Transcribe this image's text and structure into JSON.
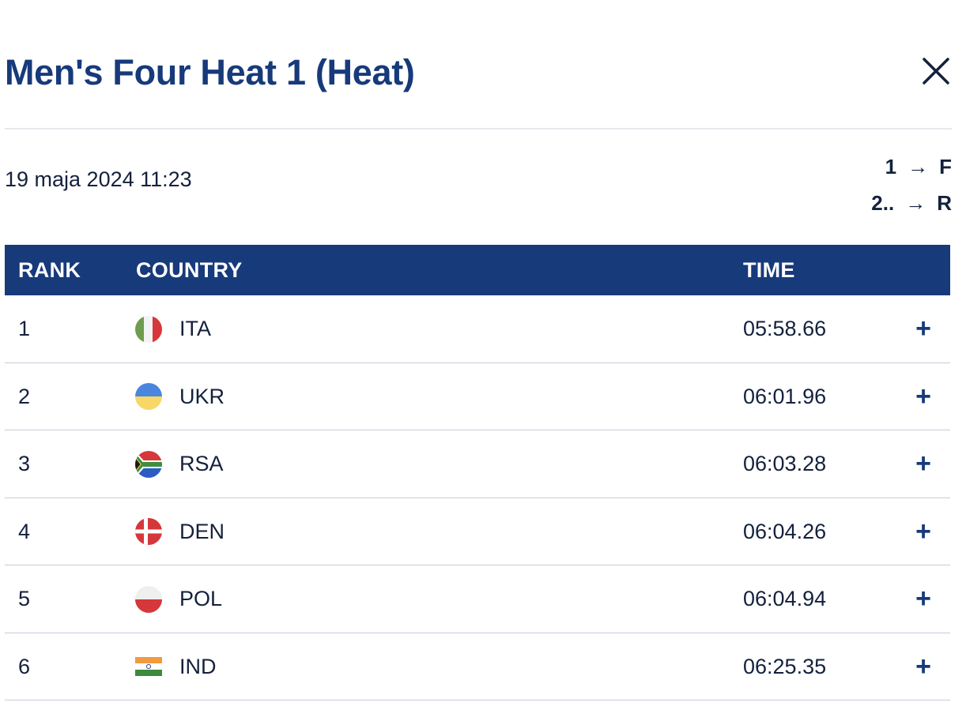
{
  "header": {
    "title": "Men's Four Heat 1 (Heat)",
    "close_icon": "close-icon"
  },
  "race": {
    "datetime": "19 maja 2024 11:23",
    "progression": [
      {
        "from": "1",
        "arrow": "→",
        "to": "F"
      },
      {
        "from": "2..",
        "arrow": "→",
        "to": "R"
      }
    ]
  },
  "table": {
    "headers": {
      "rank": "RANK",
      "country": "COUNTRY",
      "time": "TIME"
    },
    "rows": [
      {
        "rank": "1",
        "flag": "italy-flag-icon",
        "country": "ITA",
        "time": "05:58.66",
        "expand": "+"
      },
      {
        "rank": "2",
        "flag": "ukraine-flag-icon",
        "country": "UKR",
        "time": "06:01.96",
        "expand": "+"
      },
      {
        "rank": "3",
        "flag": "south-africa-flag-icon",
        "country": "RSA",
        "time": "06:03.28",
        "expand": "+"
      },
      {
        "rank": "4",
        "flag": "denmark-flag-icon",
        "country": "DEN",
        "time": "06:04.26",
        "expand": "+"
      },
      {
        "rank": "5",
        "flag": "poland-flag-icon",
        "country": "POL",
        "time": "06:04.94",
        "expand": "+"
      },
      {
        "rank": "6",
        "flag": "india-flag-icon",
        "country": "IND",
        "time": "06:25.35",
        "expand": "+"
      }
    ]
  },
  "colors": {
    "primary": "#173a7a",
    "text": "#14213d",
    "divider": "#e6e8ee",
    "row_border": "#c5ccd8"
  }
}
